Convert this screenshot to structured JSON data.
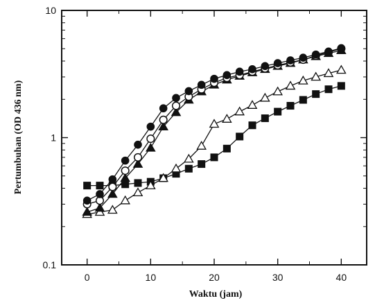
{
  "chart_data": {
    "type": "scatter",
    "title": "",
    "xlabel": "Waktu (jam)",
    "ylabel": "Pertumbuhan (OD 436 nm)",
    "xlim": [
      -4,
      44
    ],
    "ylim": [
      0.1,
      10
    ],
    "yscale": "log",
    "x_ticks": [
      0,
      10,
      20,
      30,
      40
    ],
    "x_tick_labels": [
      "0",
      "10",
      "20",
      "30",
      "40"
    ],
    "y_ticks": [
      0.1,
      1,
      10
    ],
    "y_tick_labels": [
      "0.1",
      "1",
      "10"
    ],
    "grid": false,
    "legend": "none",
    "series": [
      {
        "marker": "filled-circle",
        "x": [
          0,
          2,
          4,
          6,
          8,
          10,
          12,
          14,
          16,
          18,
          20,
          22,
          24,
          26,
          28,
          30,
          32,
          34,
          36,
          38,
          40
        ],
        "values": [
          0.32,
          0.36,
          0.47,
          0.66,
          0.88,
          1.22,
          1.7,
          2.05,
          2.32,
          2.6,
          2.9,
          3.1,
          3.3,
          3.45,
          3.65,
          3.85,
          4.05,
          4.25,
          4.5,
          4.75,
          5.05
        ]
      },
      {
        "marker": "open-circle",
        "x": [
          0,
          2,
          4,
          6,
          8,
          10,
          12,
          14,
          16,
          18,
          20,
          22,
          24,
          26,
          28,
          30,
          32,
          34,
          36,
          38,
          40
        ],
        "values": [
          0.3,
          0.32,
          0.41,
          0.55,
          0.7,
          0.98,
          1.38,
          1.78,
          2.1,
          2.4,
          2.7,
          2.95,
          3.1,
          3.3,
          3.5,
          3.7,
          3.9,
          4.1,
          4.4,
          4.7,
          5.0
        ]
      },
      {
        "marker": "filled-triangle",
        "x": [
          0,
          2,
          4,
          6,
          8,
          10,
          12,
          14,
          16,
          18,
          20,
          22,
          24,
          26,
          28,
          30,
          32,
          34,
          36,
          38,
          40
        ],
        "values": [
          0.26,
          0.28,
          0.36,
          0.48,
          0.62,
          0.83,
          1.22,
          1.58,
          1.98,
          2.3,
          2.6,
          2.85,
          3.05,
          3.25,
          3.45,
          3.65,
          3.85,
          4.1,
          4.35,
          4.6,
          4.85
        ]
      },
      {
        "marker": "open-triangle",
        "x": [
          0,
          2,
          4,
          6,
          8,
          10,
          12,
          14,
          16,
          18,
          20,
          22,
          24,
          26,
          28,
          30,
          32,
          34,
          36,
          38,
          40
        ],
        "values": [
          0.25,
          0.26,
          0.27,
          0.32,
          0.37,
          0.42,
          0.48,
          0.57,
          0.68,
          0.86,
          1.28,
          1.4,
          1.6,
          1.8,
          2.05,
          2.3,
          2.55,
          2.8,
          3.0,
          3.2,
          3.4
        ]
      },
      {
        "marker": "filled-square",
        "x": [
          0,
          2,
          4,
          6,
          8,
          10,
          12,
          14,
          16,
          18,
          20,
          22,
          24,
          26,
          28,
          30,
          32,
          34,
          36,
          38,
          40
        ],
        "values": [
          0.42,
          0.42,
          0.42,
          0.43,
          0.44,
          0.45,
          0.48,
          0.52,
          0.57,
          0.62,
          0.7,
          0.82,
          1.02,
          1.25,
          1.42,
          1.6,
          1.78,
          1.98,
          2.2,
          2.4,
          2.55
        ]
      }
    ]
  }
}
